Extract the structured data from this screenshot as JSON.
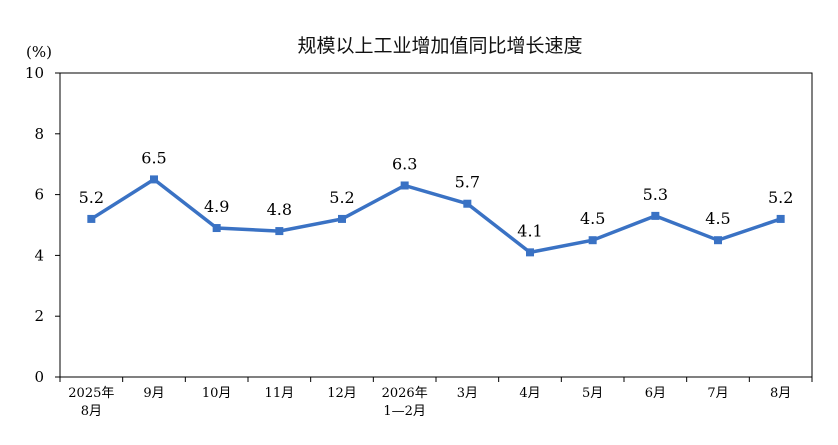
{
  "chart_data": {
    "type": "line",
    "title": "规模以上工业增加值同比增长速度",
    "unit_label": "(%)",
    "ylim": [
      0,
      10
    ],
    "yticks": [
      0,
      2,
      4,
      6,
      8,
      10
    ],
    "categories": [
      [
        "2025年",
        "8月"
      ],
      [
        "9月"
      ],
      [
        "10月"
      ],
      [
        "11月"
      ],
      [
        "12月"
      ],
      [
        "2026年",
        "1—2月"
      ],
      [
        "3月"
      ],
      [
        "4月"
      ],
      [
        "5月"
      ],
      [
        "6月"
      ],
      [
        "7月"
      ],
      [
        "8月"
      ]
    ],
    "values": [
      5.2,
      6.5,
      4.9,
      4.8,
      5.2,
      6.3,
      5.7,
      4.1,
      4.5,
      5.3,
      4.5,
      5.2
    ],
    "data_labels": [
      "5.2",
      "6.5",
      "4.9",
      "4.8",
      "5.2",
      "6.3",
      "5.7",
      "4.1",
      "4.5",
      "5.3",
      "4.5",
      "5.2"
    ],
    "grid": false,
    "legend": "none",
    "line_color": "#3a72c4"
  }
}
